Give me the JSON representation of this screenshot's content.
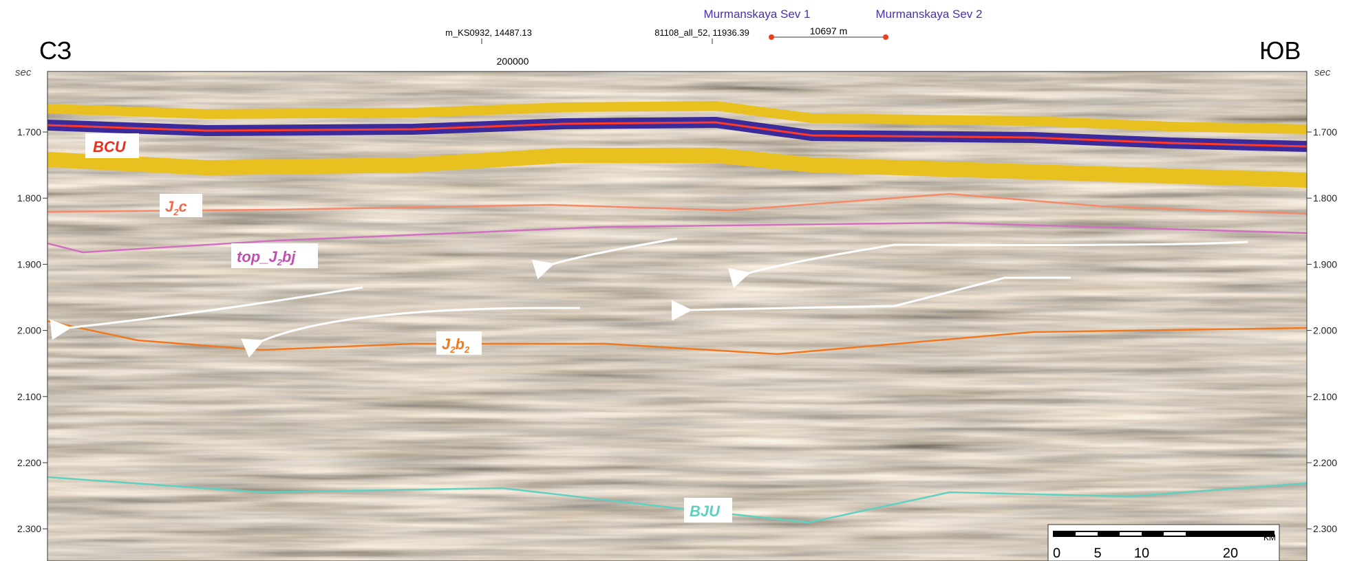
{
  "header": {
    "left_direction": "СЗ",
    "right_direction": "ЮВ",
    "axis_unit": "sec"
  },
  "axis": {
    "ticks": [
      "1.700",
      "1.800",
      "1.900",
      "2.000",
      "2.100",
      "2.200",
      "2.300"
    ]
  },
  "top_labels": {
    "line1": "m_KS0932, 14487.13",
    "line2": "81108_all_52, 11936.39",
    "cdp": "200000"
  },
  "wells": {
    "well1": "Murmanskaya Sev 1",
    "well2": "Murmanskaya Sev 2",
    "distance": "10697 m"
  },
  "horizons": {
    "bcu": "BCU",
    "j2c": {
      "main": "J",
      "sub": "2",
      "rest": "c"
    },
    "top_j2bj": {
      "main": "top_J",
      "sub": "2",
      "rest": "bj"
    },
    "j2b2": {
      "main": "J",
      "sub": "2",
      "rest": "b",
      "sub2": "2"
    },
    "bju": "BJU"
  },
  "scale_bar": {
    "labels": [
      "0",
      "5",
      "10",
      "20"
    ],
    "unit": "KM"
  }
}
